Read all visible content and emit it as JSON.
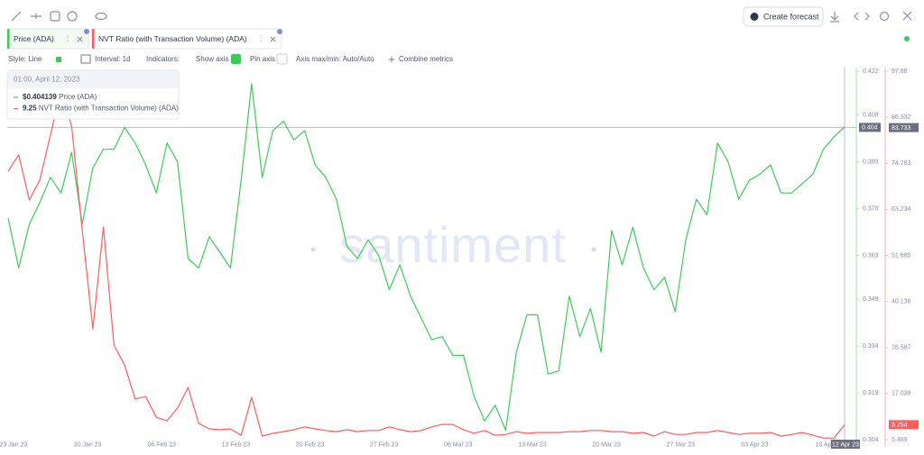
{
  "toolbar": {
    "create_forecast": "Create forecast"
  },
  "settings": {
    "style": "Style: Line",
    "interval": "Interval: 1d",
    "indicators": "Indicators:",
    "show_axis": "Show axis",
    "pin_axis": "Pin axis",
    "axis_maxmin": "Axis max/min: Auto/Auto",
    "combine": "Combine metrics"
  },
  "watermark": "santiment",
  "tooltip": {
    "date": "01:00, April 12, 2023",
    "values": [
      "$0.404139",
      "9.25"
    ]
  },
  "chart_data": {
    "type": "line",
    "categories": [
      "23 Jan 23",
      null,
      null,
      null,
      null,
      null,
      null,
      "30 Jan 23",
      null,
      null,
      null,
      null,
      null,
      null,
      "06 Feb 23",
      null,
      null,
      null,
      null,
      null,
      null,
      "13 Feb 23",
      null,
      null,
      null,
      null,
      null,
      null,
      "20 Feb 23",
      null,
      null,
      null,
      null,
      null,
      null,
      "27 Feb 23",
      null,
      null,
      null,
      null,
      null,
      null,
      "06 Mar 23",
      null,
      null,
      null,
      null,
      null,
      null,
      "13 Mar 23",
      null,
      null,
      null,
      null,
      null,
      null,
      "20 Mar 23",
      null,
      null,
      null,
      null,
      null,
      null,
      "27 Mar 23",
      null,
      null,
      null,
      null,
      null,
      null,
      "03 Apr 23",
      null,
      null,
      null,
      null,
      null,
      null,
      "10 Apr 23",
      null,
      "12 Apr 23"
    ],
    "series": [
      {
        "name": "Price (ADA)",
        "color": "#3ccb58",
        "axis": "y",
        "values": [
          0.375,
          0.359,
          0.373,
          0.38,
          0.388,
          0.383,
          0.396,
          0.373,
          0.391,
          0.397,
          0.397,
          0.404,
          0.399,
          0.392,
          0.383,
          0.399,
          0.393,
          0.362,
          0.359,
          0.369,
          0.364,
          0.359,
          0.387,
          0.418,
          0.388,
          0.403,
          0.406,
          0.4,
          0.403,
          0.392,
          0.388,
          0.381,
          0.366,
          0.362,
          0.368,
          0.363,
          0.352,
          0.36,
          0.35,
          0.343,
          0.336,
          0.337,
          0.331,
          0.331,
          0.318,
          0.31,
          0.315,
          0.307,
          0.332,
          0.344,
          0.344,
          0.325,
          0.326,
          0.35,
          0.337,
          0.346,
          0.332,
          0.371,
          0.36,
          0.372,
          0.359,
          0.352,
          0.356,
          0.345,
          0.368,
          0.381,
          0.376,
          0.399,
          0.393,
          0.381,
          0.387,
          0.389,
          0.392,
          0.383,
          0.383,
          0.386,
          0.389,
          0.397,
          0.401,
          0.404139
        ]
      },
      {
        "name": "NVT Ratio (with Transaction Volume) (ADA)",
        "color": "#ff5b5b",
        "axis": "y2",
        "last_value": 9.254,
        "values": [
          72.8,
          76.9,
          65.6,
          70.6,
          81.9,
          93.1,
          84.1,
          58.1,
          33.3,
          58.8,
          29.2,
          24.2,
          15.7,
          16.3,
          11.1,
          10.2,
          13.4,
          18.6,
          9.6,
          8.2,
          8.0,
          8.2,
          6.6,
          16.1,
          6.4,
          7.1,
          7.5,
          8.0,
          8.7,
          8.2,
          7.8,
          7.5,
          8.0,
          7.5,
          7.8,
          7.8,
          8.7,
          8.0,
          7.5,
          7.8,
          8.7,
          9.3,
          9.3,
          8.0,
          7.1,
          7.8,
          6.6,
          6.8,
          7.5,
          7.1,
          7.3,
          7.3,
          7.3,
          7.5,
          7.5,
          7.8,
          7.8,
          7.5,
          7.5,
          7.1,
          7.3,
          6.4,
          7.5,
          6.8,
          6.8,
          7.3,
          7.3,
          7.8,
          7.3,
          6.8,
          7.1,
          7.1,
          7.3,
          6.4,
          6.8,
          7.3,
          6.6,
          5.9,
          5.9,
          9.25
        ]
      }
    ],
    "ylim": [
      0.304,
      0.422
    ],
    "yticks": [
      0.304,
      0.319,
      0.334,
      0.349,
      0.363,
      0.378,
      0.393,
      0.408,
      0.422
    ],
    "y2lim": [
      5.489,
      97.88
    ],
    "y2ticks": [
      5.489,
      17.038,
      28.587,
      40.136,
      51.685,
      63.234,
      74.783,
      86.332,
      97.88
    ],
    "crosshair": {
      "y": 0.404,
      "y2": 83.733
    }
  }
}
